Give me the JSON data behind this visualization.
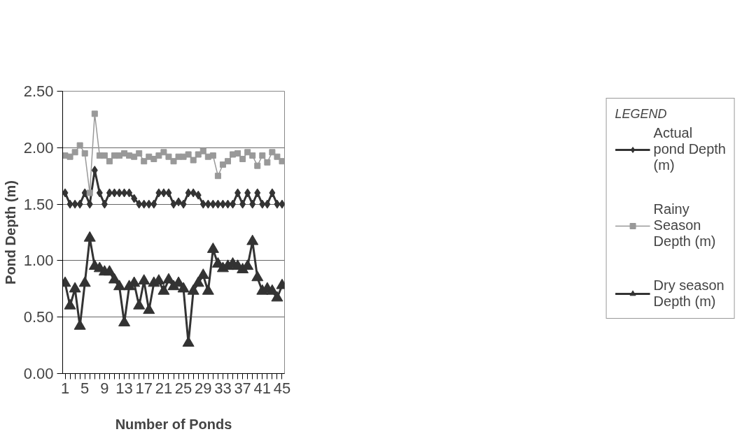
{
  "chart_data": {
    "type": "line",
    "xlabel": "Number of Ponds",
    "ylabel": "Pond Depth (m)",
    "legend_title": "LEGEND",
    "x": [
      1,
      2,
      3,
      4,
      5,
      6,
      7,
      8,
      9,
      10,
      11,
      12,
      13,
      14,
      15,
      16,
      17,
      18,
      19,
      20,
      21,
      22,
      23,
      24,
      25,
      26,
      27,
      28,
      29,
      30,
      31,
      32,
      33,
      34,
      35,
      36,
      37,
      38,
      39,
      40,
      41,
      42,
      43,
      44,
      45
    ],
    "xlim": [
      0.5,
      45.5
    ],
    "xticks": [
      1,
      {
        "value": 2,
        "label": null
      },
      {
        "value": 3,
        "label": null
      },
      {
        "value": 4,
        "label": null
      },
      5,
      {
        "value": 6,
        "label": null
      },
      {
        "value": 7,
        "label": null
      },
      {
        "value": 8,
        "label": null
      },
      9,
      {
        "value": 10,
        "label": null
      },
      {
        "value": 11,
        "label": null
      },
      {
        "value": 12,
        "label": null
      },
      13,
      {
        "value": 14,
        "label": null
      },
      {
        "value": 15,
        "label": null
      },
      {
        "value": 16,
        "label": null
      },
      17,
      {
        "value": 18,
        "label": null
      },
      {
        "value": 19,
        "label": null
      },
      {
        "value": 20,
        "label": null
      },
      21,
      {
        "value": 22,
        "label": null
      },
      {
        "value": 23,
        "label": null
      },
      {
        "value": 24,
        "label": null
      },
      25,
      {
        "value": 26,
        "label": null
      },
      {
        "value": 27,
        "label": null
      },
      {
        "value": 28,
        "label": null
      },
      29,
      {
        "value": 30,
        "label": null
      },
      {
        "value": 31,
        "label": null
      },
      {
        "value": 32,
        "label": null
      },
      33,
      {
        "value": 34,
        "label": null
      },
      {
        "value": 35,
        "label": null
      },
      {
        "value": 36,
        "label": null
      },
      37,
      {
        "value": 38,
        "label": null
      },
      {
        "value": 39,
        "label": null
      },
      {
        "value": 40,
        "label": null
      },
      41,
      {
        "value": 42,
        "label": null
      },
      {
        "value": 43,
        "label": null
      },
      {
        "value": 44,
        "label": null
      },
      45
    ],
    "ylim": [
      0,
      2.5
    ],
    "yticks": [
      {
        "value": 0,
        "label": "0.00"
      },
      {
        "value": 0.5,
        "label": "0.50"
      },
      {
        "value": 1,
        "label": "1.00"
      },
      {
        "value": 1.5,
        "label": "1.50"
      },
      {
        "value": 2,
        "label": "2.00"
      },
      {
        "value": 2.5,
        "label": "2.50"
      }
    ],
    "grid": "y",
    "legend": "right",
    "series": [
      {
        "name": "Actual pond Depth (m)",
        "color": "#333333",
        "marker": "diamond",
        "values": [
          1.6,
          1.5,
          1.5,
          1.5,
          1.6,
          1.5,
          1.8,
          1.6,
          1.5,
          1.6,
          1.6,
          1.6,
          1.6,
          1.6,
          1.55,
          1.5,
          1.5,
          1.5,
          1.5,
          1.6,
          1.6,
          1.6,
          1.5,
          1.52,
          1.5,
          1.6,
          1.6,
          1.58,
          1.5,
          1.5,
          1.5,
          1.5,
          1.5,
          1.5,
          1.5,
          1.6,
          1.5,
          1.6,
          1.5,
          1.6,
          1.5,
          1.5,
          1.6,
          1.5,
          1.5
        ]
      },
      {
        "name": "Rainy Season Depth (m)",
        "color": "#999999",
        "marker": "square",
        "values": [
          1.93,
          1.92,
          1.96,
          2.02,
          1.95,
          1.6,
          2.3,
          1.93,
          1.93,
          1.88,
          1.93,
          1.93,
          1.95,
          1.93,
          1.92,
          1.95,
          1.88,
          1.92,
          1.9,
          1.93,
          1.96,
          1.92,
          1.88,
          1.92,
          1.92,
          1.94,
          1.89,
          1.94,
          1.97,
          1.92,
          1.93,
          1.75,
          1.85,
          1.88,
          1.94,
          1.95,
          1.9,
          1.96,
          1.93,
          1.84,
          1.93,
          1.87,
          1.96,
          1.92,
          1.88
        ]
      },
      {
        "name": "Dry season Depth (m)",
        "color": "#333333",
        "marker": "triangle",
        "values": [
          0.8,
          0.6,
          0.75,
          0.42,
          0.8,
          1.2,
          0.95,
          0.93,
          0.9,
          0.9,
          0.83,
          0.77,
          0.45,
          0.77,
          0.8,
          0.6,
          0.82,
          0.56,
          0.8,
          0.82,
          0.73,
          0.83,
          0.77,
          0.8,
          0.75,
          0.27,
          0.73,
          0.8,
          0.87,
          0.73,
          1.1,
          0.97,
          0.93,
          0.95,
          0.97,
          0.95,
          0.92,
          0.95,
          1.17,
          0.85,
          0.73,
          0.75,
          0.73,
          0.67,
          0.78
        ]
      }
    ]
  }
}
